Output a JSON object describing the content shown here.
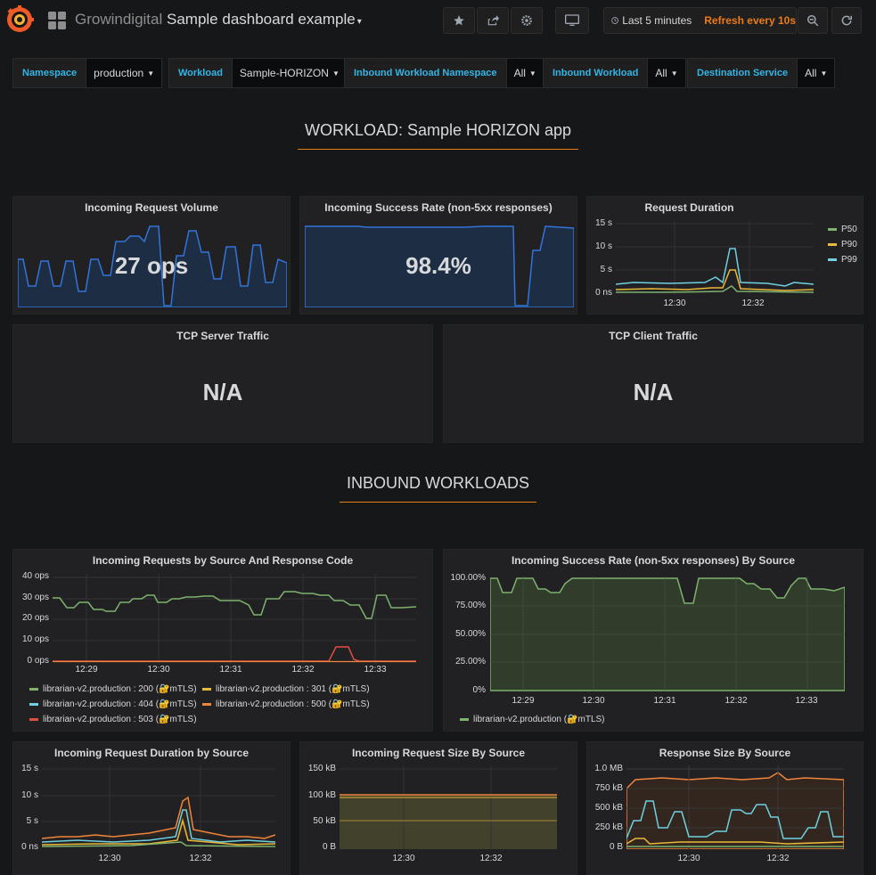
{
  "topbar": {
    "folder": "Growindigital",
    "title": "Sample dashboard example",
    "time_range": "Last 5 minutes",
    "refresh": "Refresh every 10s"
  },
  "variables": [
    {
      "label": "Namespace",
      "value": "production"
    },
    {
      "label": "Workload",
      "value": "Sample-HORIZON"
    },
    {
      "label": "Inbound Workload Namespace",
      "value": "All"
    },
    {
      "label": "Inbound Workload",
      "value": "All"
    },
    {
      "label": "Destination Service",
      "value": "All"
    }
  ],
  "sections": {
    "workload": "WORKLOAD: Sample HORIZON app",
    "inbound": "INBOUND WORKLOADS"
  },
  "panels": {
    "volume": {
      "title": "Incoming Request Volume",
      "value": "27 ops"
    },
    "success": {
      "title": "Incoming Success Rate (non-5xx responses)",
      "value": "98.4%"
    },
    "duration": {
      "title": "Request Duration",
      "y_ticks": [
        "15 s",
        "10 s",
        "5 s",
        "0 ns"
      ],
      "x_ticks": [
        "12:30",
        "12:32"
      ],
      "legend": [
        "P50",
        "P90",
        "P99"
      ]
    },
    "tcp_server": {
      "title": "TCP Server Traffic",
      "value": "N/A"
    },
    "tcp_client": {
      "title": "TCP Client Traffic",
      "value": "N/A"
    },
    "req_by_source": {
      "title": "Incoming Requests by Source And Response Code",
      "y_ticks": [
        "40 ops",
        "30 ops",
        "20 ops",
        "10 ops",
        "0 ops"
      ],
      "x_ticks": [
        "12:29",
        "12:30",
        "12:31",
        "12:32",
        "12:33"
      ],
      "legend": [
        "librarian-v2.production : 200 (🔐mTLS)",
        "librarian-v2.production : 301 (🔐mTLS)",
        "librarian-v2.production : 404 (🔐mTLS)",
        "librarian-v2.production : 500 (🔐mTLS)",
        "librarian-v2.production : 503 (🔐mTLS)"
      ]
    },
    "success_by_source": {
      "title": "Incoming Success Rate (non-5xx responses) By Source",
      "y_ticks": [
        "100.00%",
        "75.00%",
        "50.00%",
        "25.00%",
        "0%"
      ],
      "x_ticks": [
        "12:29",
        "12:30",
        "12:31",
        "12:32",
        "12:33"
      ],
      "legend": [
        "librarian-v2.production (🔐mTLS)"
      ]
    },
    "dur_by_source": {
      "title": "Incoming Request Duration by Source",
      "y_ticks": [
        "15 s",
        "10 s",
        "5 s",
        "0 ns"
      ],
      "x_ticks": [
        "12:30",
        "12:32"
      ]
    },
    "size_by_source": {
      "title": "Incoming Request Size By Source",
      "y_ticks": [
        "150 kB",
        "100 kB",
        "50 kB",
        "0 B"
      ],
      "x_ticks": [
        "12:30",
        "12:32"
      ]
    },
    "resp_by_source": {
      "title": "Response Size By Source",
      "y_ticks": [
        "1.0 MB",
        "750 kB",
        "500 kB",
        "250 kB",
        "0 B"
      ],
      "x_ticks": [
        "12:30",
        "12:32"
      ]
    }
  },
  "colors": {
    "green": "#7eb26d",
    "yellow": "#eab839",
    "cyan": "#6ed0e0",
    "orange": "#ef843c",
    "red": "#e24d42",
    "blue": "#3274d9",
    "accent": "#eb7b18"
  }
}
